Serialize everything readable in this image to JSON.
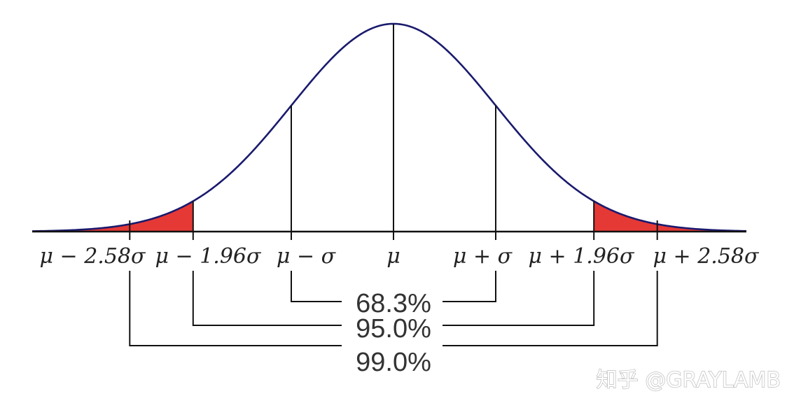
{
  "diagram": {
    "curve_color": "#1a1a6e",
    "tail_color": "#e53935",
    "line_color": "#111111",
    "markers": [
      {
        "label": "μ − 2.58σ",
        "z": -2.58
      },
      {
        "label": "μ − 1.96σ",
        "z": -1.96
      },
      {
        "label": "μ − σ",
        "z": -1
      },
      {
        "label": "μ",
        "z": 0
      },
      {
        "label": "μ + σ",
        "z": 1
      },
      {
        "label": "μ + 1.96σ",
        "z": 1.96
      },
      {
        "label": "μ + 2.58σ",
        "z": 2.58
      }
    ],
    "intervals": [
      {
        "label": "68.3%",
        "z": 1
      },
      {
        "label": "95.0%",
        "z": 1.96
      },
      {
        "label": "99.0%",
        "z": 2.58
      }
    ]
  },
  "watermark": {
    "text": "知乎 @GRAYLAMB"
  }
}
